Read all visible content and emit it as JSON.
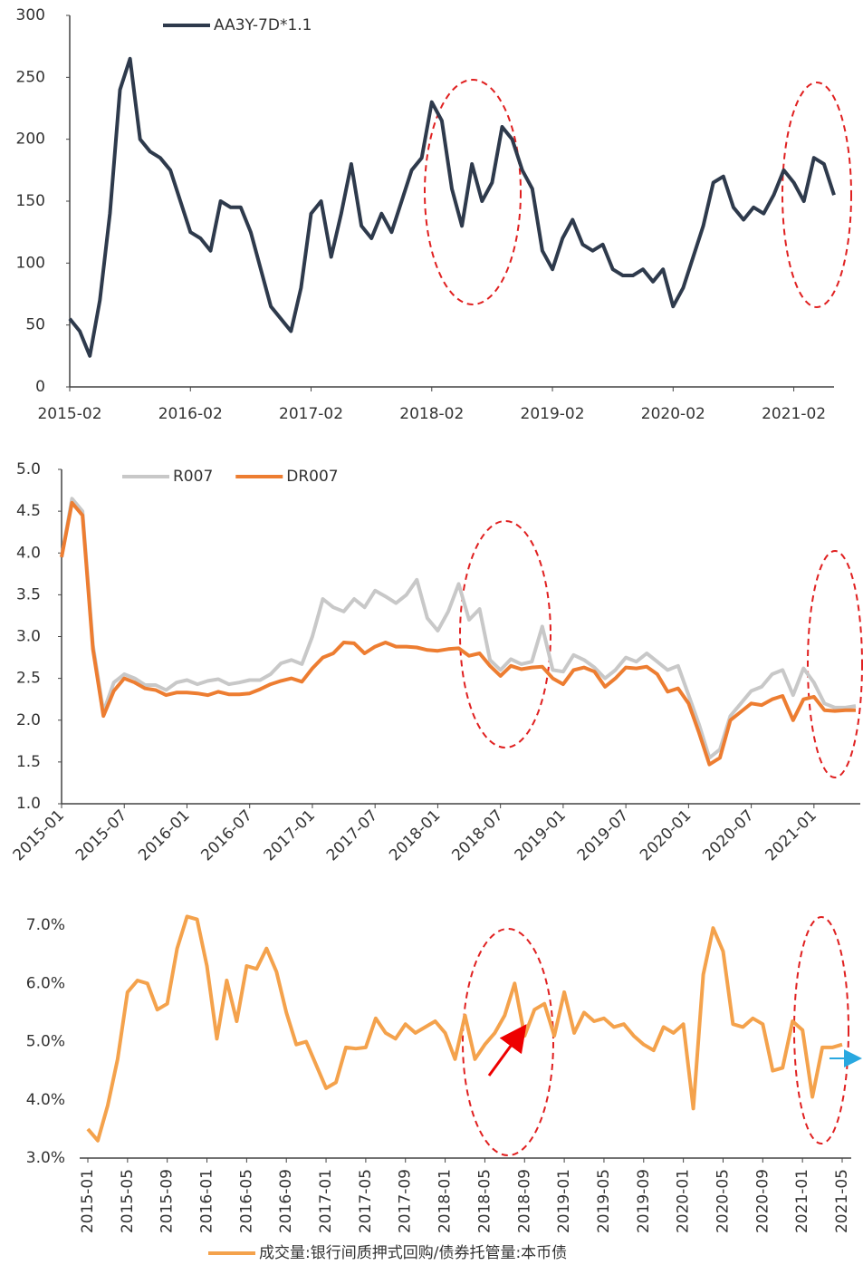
{
  "chart_data": [
    {
      "type": "line",
      "categories": [
        "2015-02",
        null,
        null,
        null,
        null,
        null,
        null,
        null,
        null,
        null,
        null,
        null,
        "2016-02",
        null,
        null,
        null,
        null,
        null,
        null,
        null,
        null,
        null,
        null,
        null,
        "2017-02",
        null,
        null,
        null,
        null,
        null,
        null,
        null,
        null,
        null,
        null,
        null,
        "2018-02",
        null,
        null,
        null,
        null,
        null,
        null,
        null,
        null,
        null,
        null,
        null,
        "2019-02",
        null,
        null,
        null,
        null,
        null,
        null,
        null,
        null,
        null,
        null,
        null,
        "2020-02",
        null,
        null,
        null,
        null,
        null,
        null,
        null,
        null,
        null,
        null,
        null,
        "2021-02",
        null,
        null,
        null,
        null
      ],
      "series": [
        {
          "name": "AA3Y-7D*1.1",
          "color": "#2e3a4c",
          "values": [
            55,
            45,
            25,
            70,
            140,
            240,
            265,
            200,
            190,
            185,
            175,
            150,
            125,
            120,
            110,
            150,
            145,
            145,
            125,
            95,
            65,
            55,
            45,
            80,
            140,
            150,
            105,
            140,
            180,
            130,
            120,
            140,
            125,
            150,
            175,
            185,
            230,
            215,
            160,
            130,
            180,
            150,
            165,
            210,
            200,
            175,
            160,
            110,
            95,
            120,
            135,
            115,
            110,
            115,
            95,
            90,
            90,
            95,
            85,
            95,
            65,
            80,
            105,
            130,
            165,
            170,
            145,
            135,
            145,
            140,
            155,
            175,
            165,
            150,
            185,
            180,
            155
          ]
        }
      ],
      "ylim": [
        0,
        300
      ],
      "yticks": [
        0,
        50,
        100,
        150,
        200,
        250,
        300
      ],
      "legend": "top-left"
    },
    {
      "type": "line",
      "categories": [
        "2015-01",
        null,
        null,
        null,
        null,
        null,
        "2015-07",
        null,
        null,
        null,
        null,
        null,
        "2016-01",
        null,
        null,
        null,
        null,
        null,
        "2016-07",
        null,
        null,
        null,
        null,
        null,
        "2017-01",
        null,
        null,
        null,
        null,
        null,
        "2017-07",
        null,
        null,
        null,
        null,
        null,
        "2018-01",
        null,
        null,
        null,
        null,
        null,
        "2018-07",
        null,
        null,
        null,
        null,
        null,
        "2019-01",
        null,
        null,
        null,
        null,
        null,
        "2019-07",
        null,
        null,
        null,
        null,
        null,
        "2020-01",
        null,
        null,
        null,
        null,
        null,
        "2020-07",
        null,
        null,
        null,
        null,
        null,
        "2021-01",
        null,
        null,
        null,
        null
      ],
      "series": [
        {
          "name": "R007",
          "color": "#c8c8c8",
          "values": [
            3.95,
            4.65,
            4.5,
            2.9,
            2.1,
            2.45,
            2.55,
            2.5,
            2.42,
            2.42,
            2.36,
            2.45,
            2.48,
            2.43,
            2.47,
            2.49,
            2.43,
            2.45,
            2.48,
            2.48,
            2.55,
            2.68,
            2.72,
            2.67,
            3.0,
            3.45,
            3.35,
            3.3,
            3.45,
            3.35,
            3.55,
            3.48,
            3.4,
            3.5,
            3.68,
            3.22,
            3.07,
            3.3,
            3.63,
            3.2,
            3.33,
            2.72,
            2.6,
            2.73,
            2.67,
            2.7,
            3.12,
            2.6,
            2.58,
            2.78,
            2.72,
            2.63,
            2.5,
            2.6,
            2.75,
            2.7,
            2.8,
            2.7,
            2.6,
            2.65,
            2.3,
            1.95,
            1.55,
            1.65,
            2.05,
            2.2,
            2.35,
            2.4,
            2.55,
            2.6,
            2.3,
            2.62,
            2.45,
            2.2,
            2.15,
            2.15,
            2.17
          ]
        },
        {
          "name": "DR007",
          "color": "#ed7d31",
          "values": [
            3.95,
            4.6,
            4.45,
            2.85,
            2.05,
            2.35,
            2.5,
            2.45,
            2.38,
            2.36,
            2.3,
            2.33,
            2.33,
            2.32,
            2.3,
            2.34,
            2.31,
            2.31,
            2.32,
            2.37,
            2.43,
            2.47,
            2.5,
            2.46,
            2.62,
            2.75,
            2.8,
            2.93,
            2.92,
            2.8,
            2.88,
            2.93,
            2.88,
            2.88,
            2.87,
            2.84,
            2.83,
            2.85,
            2.86,
            2.77,
            2.8,
            2.65,
            2.53,
            2.65,
            2.61,
            2.63,
            2.64,
            2.5,
            2.43,
            2.6,
            2.63,
            2.58,
            2.4,
            2.5,
            2.63,
            2.62,
            2.64,
            2.55,
            2.34,
            2.38,
            2.2,
            1.85,
            1.47,
            1.55,
            2.0,
            2.1,
            2.2,
            2.18,
            2.25,
            2.29,
            2.0,
            2.25,
            2.28,
            2.12,
            2.11,
            2.12,
            2.12
          ]
        }
      ],
      "ylim": [
        1,
        5
      ],
      "yticks": [
        {
          "value": 1,
          "label": "1.0"
        },
        {
          "value": 1.5,
          "label": "1.5"
        },
        {
          "value": 2,
          "label": "2.0"
        },
        {
          "value": 2.5,
          "label": "2.5"
        },
        {
          "value": 3,
          "label": "3.0"
        },
        {
          "value": 3.5,
          "label": "3.5"
        },
        {
          "value": 4,
          "label": "4.0"
        },
        {
          "value": 4.5,
          "label": "4.5"
        },
        {
          "value": 5,
          "label": "5.0"
        }
      ],
      "legend": "top-left"
    },
    {
      "type": "line",
      "categories": [
        "2015-01",
        null,
        null,
        null,
        "2015-05",
        null,
        null,
        null,
        "2015-09",
        null,
        null,
        null,
        "2016-01",
        null,
        null,
        null,
        "2016-05",
        null,
        null,
        null,
        "2016-09",
        null,
        null,
        null,
        "2017-01",
        null,
        null,
        null,
        "2017-05",
        null,
        null,
        null,
        "2017-09",
        null,
        null,
        null,
        "2018-01",
        null,
        null,
        null,
        "2018-05",
        null,
        null,
        null,
        "2018-09",
        null,
        null,
        null,
        "2019-01",
        null,
        null,
        null,
        "2019-05",
        null,
        null,
        null,
        "2019-09",
        null,
        null,
        null,
        "2020-01",
        null,
        null,
        null,
        "2020-05",
        null,
        null,
        null,
        "2020-09",
        null,
        null,
        null,
        "2021-01",
        null,
        null,
        null,
        "2021-05"
      ],
      "series": [
        {
          "name": "成交量:银行间质押式回购/债券托管量:本币债",
          "color": "#f4a24c",
          "values": [
            3.5,
            3.3,
            3.9,
            4.7,
            5.85,
            6.05,
            6.0,
            5.55,
            5.65,
            6.6,
            7.15,
            7.1,
            6.3,
            5.05,
            6.05,
            5.35,
            6.3,
            6.25,
            6.6,
            6.2,
            5.5,
            4.95,
            5.0,
            4.6,
            4.2,
            4.3,
            4.9,
            4.88,
            4.9,
            5.4,
            5.15,
            5.05,
            5.3,
            5.15,
            5.25,
            5.35,
            5.15,
            4.7,
            5.45,
            4.7,
            4.95,
            5.15,
            5.45,
            6.0,
            5.1,
            5.55,
            5.65,
            5.1,
            5.85,
            5.15,
            5.5,
            5.35,
            5.4,
            5.25,
            5.3,
            5.1,
            4.95,
            4.85,
            5.25,
            5.15,
            5.3,
            3.85,
            6.15,
            6.95,
            6.55,
            5.3,
            5.25,
            5.4,
            5.3,
            4.5,
            4.55,
            5.35,
            5.2,
            4.05,
            4.9,
            4.9,
            4.95
          ]
        }
      ],
      "ylim": [
        3,
        7
      ],
      "yticks": [
        {
          "value": 3,
          "label": "3.0%"
        },
        {
          "value": 4,
          "label": "4.0%"
        },
        {
          "value": 5,
          "label": "5.0%"
        },
        {
          "value": 6,
          "label": "6.0%"
        },
        {
          "value": 7,
          "label": "7.0%"
        }
      ],
      "legend": "bottom"
    }
  ]
}
